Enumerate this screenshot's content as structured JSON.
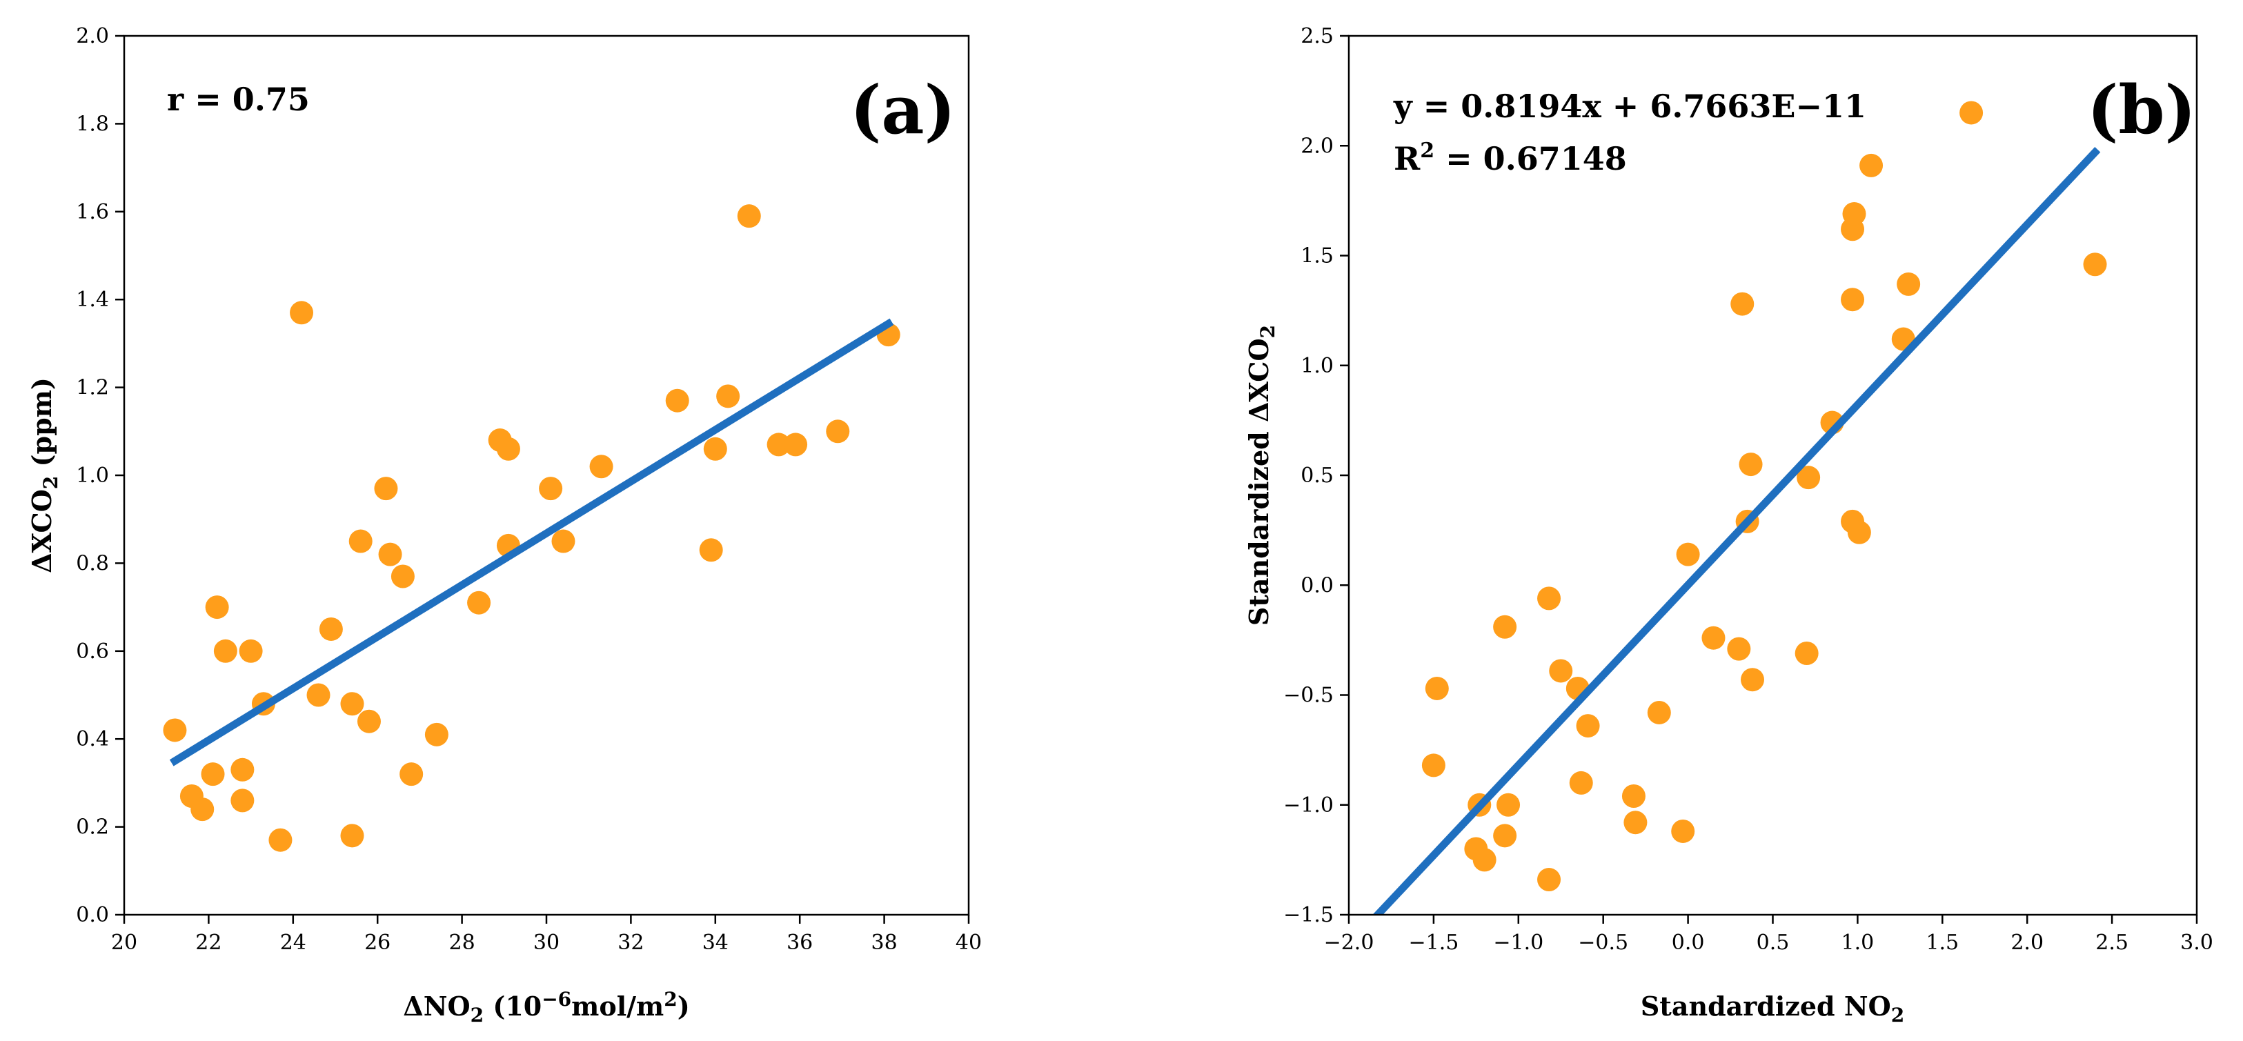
{
  "colors": {
    "point": "#ff9e1b",
    "line": "#1f6fbf",
    "axis": "#000000"
  },
  "chart_data": [
    {
      "type": "scatter",
      "panel_label": "(a)",
      "annotation": "r = 0.75",
      "xlabel": {
        "pre": "ΔNO",
        "sub": "2",
        "post": " (10",
        "sup": "−6",
        "post2": "mol/m",
        "sup2": "2",
        "end": ")"
      },
      "ylabel": {
        "pre": "ΔXCO",
        "sub": "2",
        "post": " (ppm)"
      },
      "xlim": [
        20,
        40
      ],
      "ylim": [
        0.0,
        2.0
      ],
      "xticks": [
        20,
        22,
        24,
        26,
        28,
        30,
        32,
        34,
        36,
        38,
        40
      ],
      "xticklabels": [
        "20",
        "22",
        "24",
        "26",
        "28",
        "30",
        "32",
        "34",
        "36",
        "38",
        "40"
      ],
      "yticks": [
        0.0,
        0.2,
        0.4,
        0.6,
        0.8,
        1.0,
        1.2,
        1.4,
        1.6,
        1.8,
        2.0
      ],
      "yticklabels": [
        "0.0",
        "0.2",
        "0.4",
        "0.6",
        "0.8",
        "1.0",
        "1.2",
        "1.4",
        "1.6",
        "1.8",
        "2.0"
      ],
      "points": [
        [
          21.2,
          0.42
        ],
        [
          21.6,
          0.27
        ],
        [
          21.85,
          0.24
        ],
        [
          22.1,
          0.32
        ],
        [
          22.2,
          0.7
        ],
        [
          22.4,
          0.6
        ],
        [
          22.8,
          0.33
        ],
        [
          22.8,
          0.26
        ],
        [
          23.0,
          0.6
        ],
        [
          23.3,
          0.48
        ],
        [
          23.7,
          0.17
        ],
        [
          24.2,
          1.37
        ],
        [
          24.6,
          0.5
        ],
        [
          24.9,
          0.65
        ],
        [
          25.4,
          0.18
        ],
        [
          25.4,
          0.48
        ],
        [
          25.6,
          0.85
        ],
        [
          25.8,
          0.44
        ],
        [
          26.2,
          0.97
        ],
        [
          26.3,
          0.82
        ],
        [
          26.6,
          0.77
        ],
        [
          26.8,
          0.32
        ],
        [
          27.4,
          0.41
        ],
        [
          28.4,
          0.71
        ],
        [
          28.9,
          1.08
        ],
        [
          29.1,
          1.06
        ],
        [
          29.1,
          0.84
        ],
        [
          30.1,
          0.97
        ],
        [
          30.4,
          0.85
        ],
        [
          31.3,
          1.02
        ],
        [
          33.1,
          1.17
        ],
        [
          33.9,
          0.83
        ],
        [
          34.0,
          1.06
        ],
        [
          34.3,
          1.18
        ],
        [
          34.8,
          1.59
        ],
        [
          35.5,
          1.07
        ],
        [
          35.9,
          1.07
        ],
        [
          36.9,
          1.1
        ],
        [
          38.1,
          1.32
        ]
      ],
      "fit_line": {
        "x": [
          21.2,
          38.1
        ],
        "y": [
          0.35,
          1.345
        ]
      }
    },
    {
      "type": "scatter",
      "panel_label": "(b)",
      "equation": "y = 0.8194x + 6.7663E−11",
      "r2": {
        "pre": "R",
        "sup": "2",
        "post": " = 0.67148"
      },
      "xlabel": {
        "pre": "Standardized NO",
        "sub": "2"
      },
      "ylabel": {
        "pre": "Standardized ΔXCO",
        "sub": "2"
      },
      "xlim": [
        -2.0,
        3.0
      ],
      "ylim": [
        -1.5,
        2.5
      ],
      "xticks": [
        -2.0,
        -1.5,
        -1.0,
        -0.5,
        0.0,
        0.5,
        1.0,
        1.5,
        2.0,
        2.5,
        3.0
      ],
      "xticklabels": [
        "−2.0",
        "−1.5",
        "−1.0",
        "−0.5",
        "0.0",
        "0.5",
        "1.0",
        "1.5",
        "2.0",
        "2.5",
        "3.0"
      ],
      "yticks": [
        -1.5,
        -1.0,
        -0.5,
        0.0,
        0.5,
        1.0,
        1.5,
        2.0,
        2.5
      ],
      "yticklabels": [
        "−1.5",
        "−1.0",
        "−0.5",
        "0.0",
        "0.5",
        "1.0",
        "1.5",
        "2.0",
        "2.5"
      ],
      "points": [
        [
          -1.5,
          -0.82
        ],
        [
          -1.48,
          -0.47
        ],
        [
          -1.25,
          -1.2
        ],
        [
          -1.23,
          -1.0
        ],
        [
          -1.2,
          -1.25
        ],
        [
          -1.08,
          -0.19
        ],
        [
          -1.08,
          -1.14
        ],
        [
          -1.06,
          -1.0
        ],
        [
          -0.82,
          -1.34
        ],
        [
          -0.82,
          -0.06
        ],
        [
          -0.75,
          -0.39
        ],
        [
          -0.65,
          -0.47
        ],
        [
          -0.63,
          -0.9
        ],
        [
          -0.59,
          -0.64
        ],
        [
          -0.32,
          -0.96
        ],
        [
          -0.31,
          -1.08
        ],
        [
          -0.17,
          -0.58
        ],
        [
          -0.03,
          -1.12
        ],
        [
          0.0,
          0.14
        ],
        [
          0.15,
          -0.24
        ],
        [
          0.3,
          -0.29
        ],
        [
          0.32,
          1.28
        ],
        [
          0.35,
          0.29
        ],
        [
          0.37,
          0.55
        ],
        [
          0.38,
          -0.43
        ],
        [
          0.7,
          -0.31
        ],
        [
          0.71,
          0.49
        ],
        [
          0.85,
          0.74
        ],
        [
          0.97,
          0.29
        ],
        [
          0.97,
          1.3
        ],
        [
          0.97,
          1.62
        ],
        [
          0.98,
          1.69
        ],
        [
          1.01,
          0.24
        ],
        [
          1.08,
          1.91
        ],
        [
          1.27,
          1.12
        ],
        [
          1.3,
          1.37
        ],
        [
          1.67,
          2.15
        ],
        [
          2.4,
          1.46
        ]
      ],
      "fit_line": {
        "x": [
          -1.83,
          2.4
        ],
        "y": [
          -1.5,
          1.97
        ]
      }
    }
  ]
}
